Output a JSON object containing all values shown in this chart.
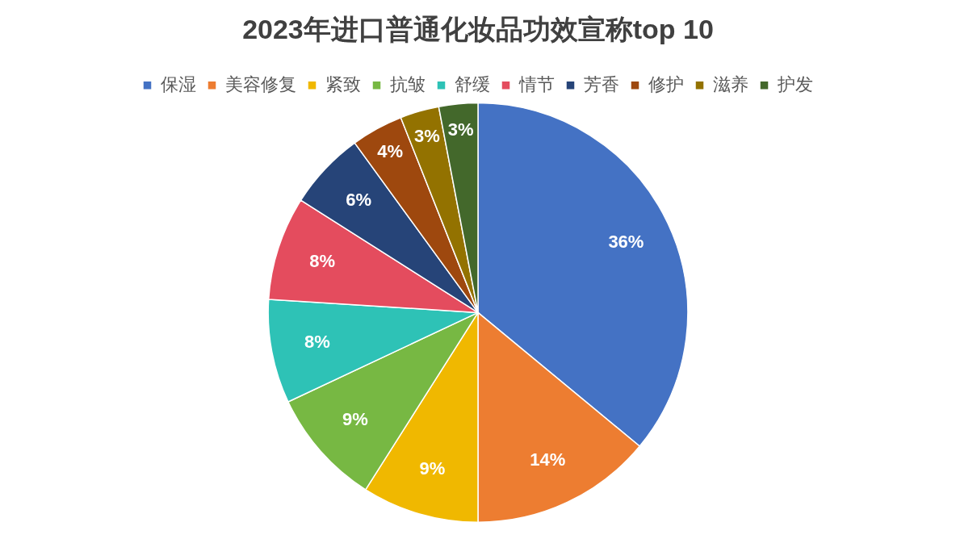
{
  "chart_data": {
    "type": "pie",
    "title": "2023年进口普通化妆品功效宣称top 10",
    "categories": [
      "保湿",
      "美容修复",
      "紧致",
      "抗皱",
      "舒缓",
      "情节",
      "芳香",
      "修护",
      "滋养",
      "护发"
    ],
    "values": [
      36,
      14,
      9,
      9,
      8,
      8,
      6,
      4,
      3,
      3
    ],
    "value_labels": [
      "36%",
      "14%",
      "9%",
      "9%",
      "8%",
      "8%",
      "6%",
      "4%",
      "3%",
      "3%"
    ],
    "colors": [
      "#4472c4",
      "#ed7d31",
      "#f0b800",
      "#77b843",
      "#2ec2b6",
      "#e44c5e",
      "#264478",
      "#9e480e",
      "#937200",
      "#43682b"
    ],
    "legend": "top"
  }
}
